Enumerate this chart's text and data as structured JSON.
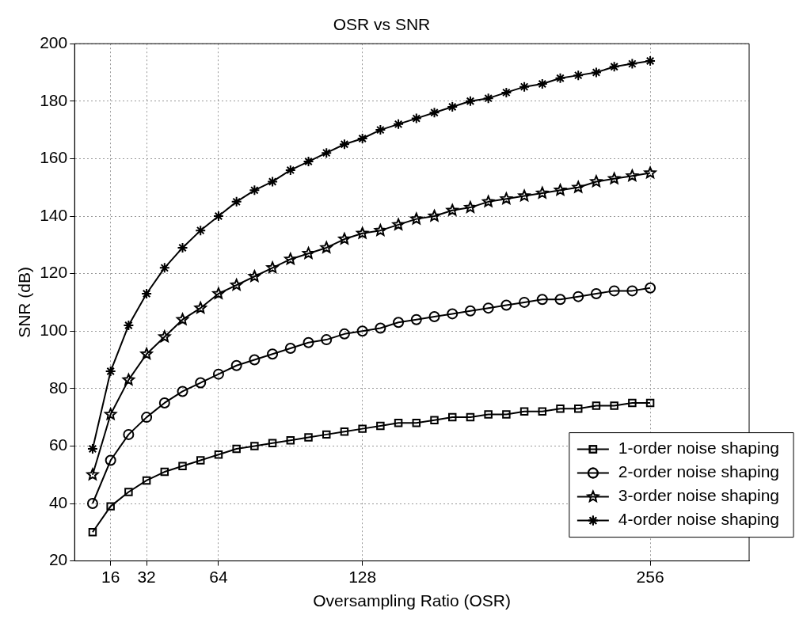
{
  "chart_data": {
    "type": "line",
    "title": "OSR vs SNR",
    "xlabel": "Oversampling Ratio (OSR)",
    "ylabel": "SNR (dB)",
    "x": [
      8,
      16,
      24,
      32,
      40,
      48,
      56,
      64,
      72,
      80,
      88,
      96,
      104,
      112,
      120,
      128,
      136,
      144,
      152,
      160,
      168,
      176,
      184,
      192,
      200,
      208,
      216,
      224,
      232,
      240,
      248,
      256
    ],
    "series": [
      {
        "name": "1-order noise shaping",
        "color": "#000000",
        "marker": "square",
        "values": [
          30,
          39,
          44,
          48,
          51,
          53,
          55,
          57,
          59,
          60,
          61,
          62,
          63,
          64,
          65,
          66,
          67,
          68,
          68,
          69,
          70,
          70,
          71,
          71,
          72,
          72,
          73,
          73,
          74,
          74,
          75,
          75
        ]
      },
      {
        "name": "2-order noise shaping",
        "color": "#000000",
        "marker": "circle",
        "values": [
          40,
          55,
          64,
          70,
          75,
          79,
          82,
          85,
          88,
          90,
          92,
          94,
          96,
          97,
          99,
          100,
          101,
          103,
          104,
          105,
          106,
          107,
          108,
          109,
          110,
          111,
          111,
          112,
          113,
          114,
          114,
          115
        ]
      },
      {
        "name": "3-order noise shaping",
        "color": "#000000",
        "marker": "star",
        "values": [
          50,
          71,
          83,
          92,
          98,
          104,
          108,
          113,
          116,
          119,
          122,
          125,
          127,
          129,
          132,
          134,
          135,
          137,
          139,
          140,
          142,
          143,
          145,
          146,
          147,
          148,
          149,
          150,
          152,
          153,
          154,
          155
        ]
      },
      {
        "name": "4-order noise shaping",
        "color": "#000000",
        "marker": "cross",
        "values": [
          59,
          86,
          102,
          113,
          122,
          129,
          135,
          140,
          145,
          149,
          152,
          156,
          159,
          162,
          165,
          167,
          170,
          172,
          174,
          176,
          178,
          180,
          181,
          183,
          185,
          186,
          188,
          189,
          190,
          192,
          193,
          194
        ]
      }
    ],
    "xlim": [
      0,
      300
    ],
    "xticks": [
      16,
      32,
      64,
      128,
      256
    ],
    "ylim": [
      20,
      200
    ],
    "yticks": [
      20,
      40,
      60,
      80,
      100,
      120,
      140,
      160,
      180,
      200
    ],
    "grid": true,
    "legend": "bottom right",
    "line_style": "solid"
  }
}
